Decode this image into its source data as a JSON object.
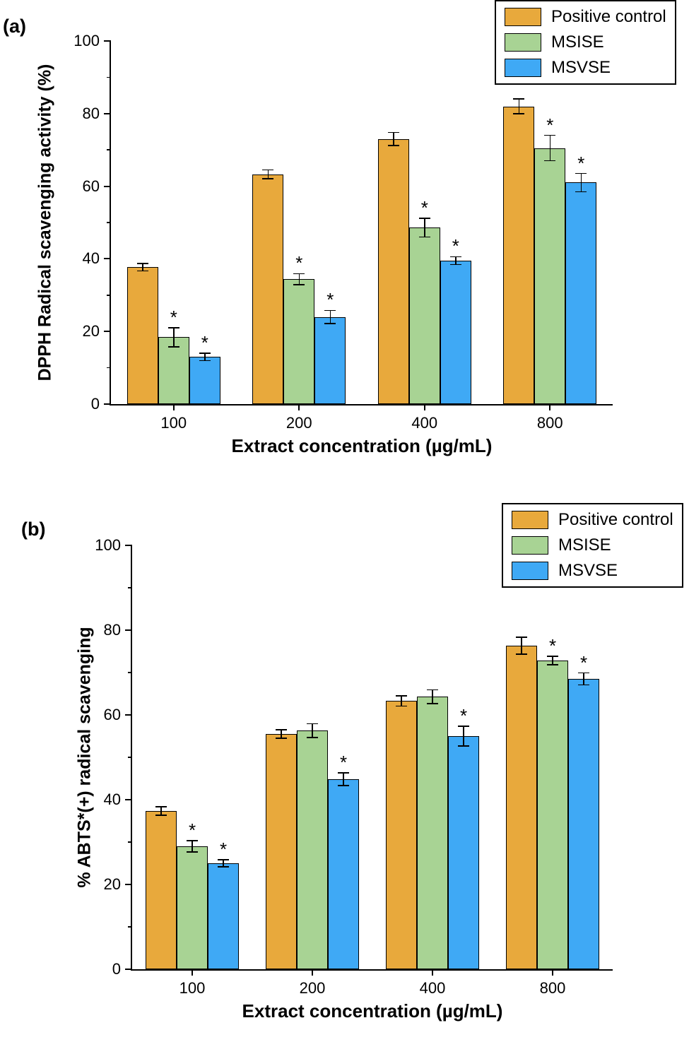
{
  "figure": {
    "type": "scientific-figure",
    "panels": [
      "(a)",
      "(b)"
    ]
  },
  "chart_data": [
    {
      "type": "bar",
      "panel_label": "(a)",
      "title": "",
      "ylabel": "DPPH Radical scavenging activity (%)",
      "xlabel": "Extract concentration (µg/mL)",
      "ylim": [
        0,
        100
      ],
      "yticks": [
        0,
        20,
        40,
        60,
        80,
        100
      ],
      "minor_tick_step": 10,
      "grid": false,
      "legend_position": "top-right",
      "error_bars": true,
      "categories": [
        "100",
        "200",
        "400",
        "800"
      ],
      "series": [
        {
          "name": "Positive control",
          "color": "#E8A93C",
          "values": [
            37.7,
            63.3,
            73.0,
            82.0
          ],
          "errors": [
            1.0,
            1.2,
            1.8,
            2.0
          ],
          "significant": [
            false,
            false,
            false,
            false
          ]
        },
        {
          "name": "MSISE",
          "color": "#A8D394",
          "values": [
            18.4,
            34.4,
            48.6,
            70.5
          ],
          "errors": [
            2.6,
            1.5,
            2.6,
            3.5
          ],
          "significant": [
            true,
            true,
            true,
            true
          ]
        },
        {
          "name": "MSVSE",
          "color": "#3FA9F5",
          "values": [
            13.0,
            24.0,
            39.5,
            61.0
          ],
          "errors": [
            1.0,
            1.8,
            1.1,
            2.5
          ],
          "significant": [
            true,
            true,
            true,
            true
          ]
        }
      ]
    },
    {
      "type": "bar",
      "panel_label": "(b)",
      "title": "",
      "ylabel": "% ABTS*(+) radical scavenging",
      "xlabel": "Extract concentration (µg/mL)",
      "ylim": [
        0,
        100
      ],
      "yticks": [
        0,
        20,
        40,
        60,
        80,
        100
      ],
      "minor_tick_step": 10,
      "grid": false,
      "legend_position": "top-right",
      "error_bars": true,
      "categories": [
        "100",
        "200",
        "400",
        "800"
      ],
      "series": [
        {
          "name": "Positive control",
          "color": "#E8A93C",
          "values": [
            37.3,
            55.5,
            63.3,
            76.3
          ],
          "errors": [
            1.0,
            1.0,
            1.2,
            2.0
          ],
          "significant": [
            false,
            false,
            false,
            false
          ]
        },
        {
          "name": "MSISE",
          "color": "#A8D394",
          "values": [
            29.0,
            56.3,
            64.3,
            72.8
          ],
          "errors": [
            1.3,
            1.6,
            1.6,
            1.0
          ],
          "significant": [
            true,
            false,
            false,
            true
          ]
        },
        {
          "name": "MSVSE",
          "color": "#3FA9F5",
          "values": [
            25.0,
            44.8,
            55.0,
            68.5
          ],
          "errors": [
            0.8,
            1.5,
            2.3,
            1.4
          ],
          "significant": [
            true,
            true,
            true,
            true
          ]
        }
      ]
    }
  ]
}
